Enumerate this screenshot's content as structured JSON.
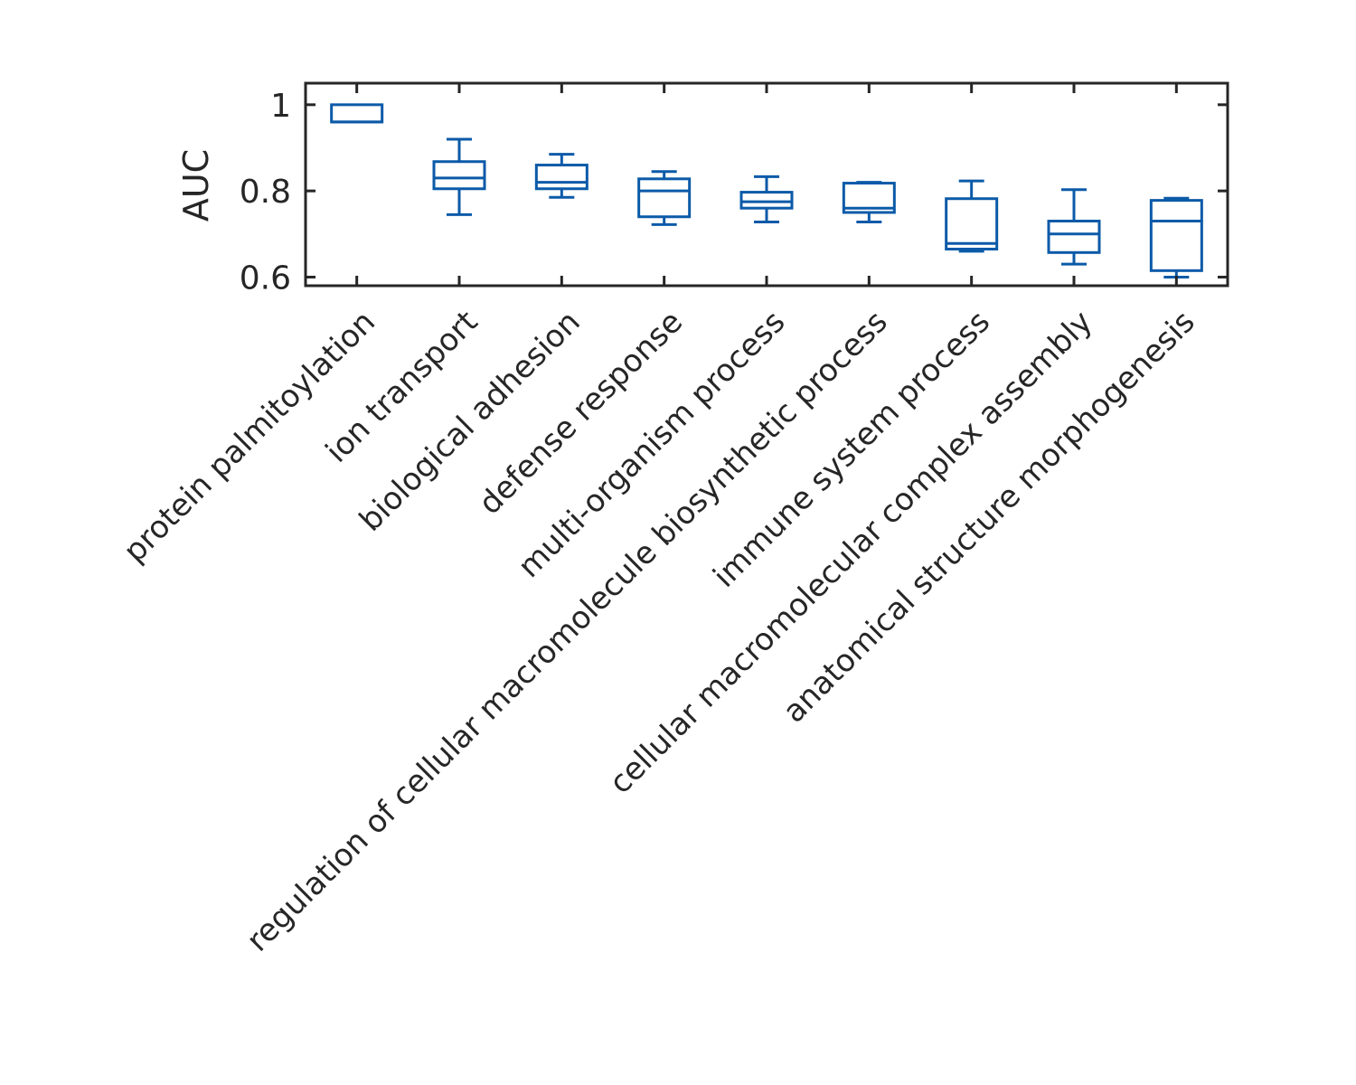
{
  "colors": {
    "box": "#0b5aa8",
    "axis": "#262626",
    "background": "#ffffff"
  },
  "chart_data": {
    "type": "box",
    "title": "",
    "xlabel": "",
    "ylabel": "AUC",
    "ylim": [
      0.58,
      1.05
    ],
    "yticks": [
      0.6,
      0.8,
      1
    ],
    "ytick_labels": [
      "0.6",
      "0.8",
      "1"
    ],
    "grid": false,
    "categories": [
      "protein palmitoylation",
      "ion transport",
      "biological adhesion",
      "defense response",
      "multi-organism process",
      "regulation of cellular macromolecule biosynthetic process",
      "immune system process",
      "cellular macromolecular complex assembly",
      "anatomical structure morphogenesis"
    ],
    "boxes": [
      {
        "whisker_low": 0.96,
        "q1": 0.96,
        "median": 0.96,
        "q3": 1.0,
        "whisker_high": 1.0
      },
      {
        "whisker_low": 0.745,
        "q1": 0.805,
        "median": 0.83,
        "q3": 0.868,
        "whisker_high": 0.92
      },
      {
        "whisker_low": 0.785,
        "q1": 0.805,
        "median": 0.82,
        "q3": 0.86,
        "whisker_high": 0.885
      },
      {
        "whisker_low": 0.722,
        "q1": 0.74,
        "median": 0.8,
        "q3": 0.828,
        "whisker_high": 0.845
      },
      {
        "whisker_low": 0.728,
        "q1": 0.76,
        "median": 0.775,
        "q3": 0.797,
        "whisker_high": 0.833
      },
      {
        "whisker_low": 0.728,
        "q1": 0.75,
        "median": 0.76,
        "q3": 0.818,
        "whisker_high": 0.82
      },
      {
        "whisker_low": 0.66,
        "q1": 0.665,
        "median": 0.678,
        "q3": 0.782,
        "whisker_high": 0.823
      },
      {
        "whisker_low": 0.63,
        "q1": 0.657,
        "median": 0.7,
        "q3": 0.73,
        "whisker_high": 0.803
      },
      {
        "whisker_low": 0.6,
        "q1": 0.615,
        "median": 0.73,
        "q3": 0.778,
        "whisker_high": 0.783
      }
    ]
  }
}
